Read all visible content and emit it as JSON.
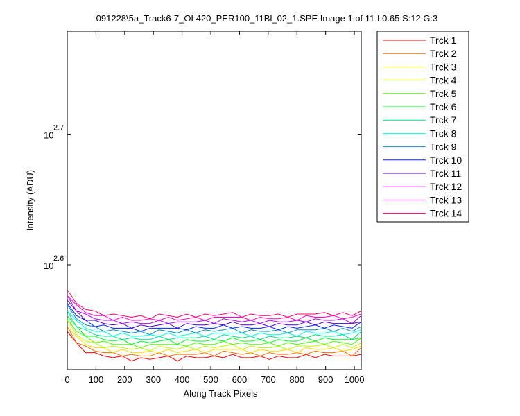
{
  "chart_data": {
    "type": "line",
    "title": "091228\\5a_Track6-7_OL420_PER100_11Bl_02_1.SPE  Image 1 of 11  I:0.65  S:12  G:3",
    "xlabel": "Along Track Pixels",
    "ylabel": "Intensity (ADU)",
    "xlim": [
      0,
      1024
    ],
    "xticks": [
      0,
      100,
      200,
      300,
      400,
      500,
      600,
      700,
      800,
      900,
      1000
    ],
    "ylim": [
      331,
      601
    ],
    "ylog": true,
    "yticks": [
      {
        "value": 398.107,
        "label": "10",
        "exponent": "2.6"
      },
      {
        "value": 501.187,
        "label": "10",
        "exponent": "2.7"
      }
    ],
    "legend": "outside-top-right",
    "x": [
      0,
      32,
      64,
      96,
      128,
      160,
      192,
      224,
      256,
      288,
      320,
      352,
      384,
      416,
      448,
      480,
      512,
      544,
      576,
      608,
      640,
      672,
      704,
      736,
      768,
      800,
      832,
      864,
      896,
      928,
      960,
      992,
      1024
    ],
    "series": [
      {
        "name": "Trck 1",
        "color": "#ff0000",
        "values": [
          354,
          347,
          341,
          341,
          339,
          338,
          339,
          336,
          338,
          337,
          338,
          339,
          336,
          339,
          338,
          338,
          339,
          338,
          340,
          338,
          338,
          339,
          337,
          339,
          338,
          338,
          340,
          338,
          340,
          339,
          339,
          339,
          340
        ]
      },
      {
        "name": "Trck 2",
        "color": "#ff6d00",
        "values": [
          357,
          347,
          345,
          342,
          341,
          341,
          339,
          340,
          339,
          339,
          341,
          339,
          340,
          340,
          340,
          341,
          339,
          342,
          341,
          340,
          341,
          339,
          341,
          340,
          340,
          341,
          340,
          342,
          341,
          341,
          342,
          339,
          344
        ]
      },
      {
        "name": "Trck 3",
        "color": "#ffdb00",
        "values": [
          357,
          351,
          346,
          344,
          344,
          341,
          343,
          341,
          341,
          342,
          341,
          343,
          341,
          342,
          343,
          341,
          343,
          343,
          343,
          343,
          341,
          343,
          342,
          342,
          343,
          341,
          344,
          343,
          343,
          344,
          342,
          343,
          345
        ]
      },
      {
        "name": "Trck 4",
        "color": "#b6ff00",
        "values": [
          361,
          352,
          348,
          347,
          344,
          345,
          344,
          343,
          344,
          342,
          345,
          344,
          343,
          345,
          343,
          345,
          344,
          345,
          346,
          343,
          345,
          344,
          344,
          345,
          343,
          345,
          345,
          345,
          346,
          344,
          346,
          344,
          347
        ]
      },
      {
        "name": "Trck 5",
        "color": "#49ff00",
        "values": [
          362,
          354,
          351,
          347,
          348,
          346,
          346,
          346,
          344,
          346,
          346,
          346,
          346,
          345,
          347,
          346,
          346,
          348,
          346,
          347,
          346,
          346,
          347,
          345,
          347,
          346,
          347,
          348,
          346,
          348,
          347,
          346,
          350
        ]
      },
      {
        "name": "Trck 6",
        "color": "#00ff24",
        "values": [
          364,
          357,
          351,
          351,
          349,
          348,
          349,
          346,
          348,
          347,
          348,
          349,
          346,
          349,
          348,
          348,
          349,
          348,
          350,
          348,
          348,
          349,
          347,
          349,
          348,
          348,
          350,
          348,
          350,
          349,
          349,
          349,
          350
        ]
      },
      {
        "name": "Trck 7",
        "color": "#00e08a",
        "values": [
          367,
          357,
          355,
          352,
          351,
          351,
          349,
          350,
          349,
          349,
          351,
          349,
          350,
          350,
          350,
          351,
          349,
          352,
          351,
          350,
          351,
          349,
          351,
          350,
          350,
          351,
          350,
          352,
          351,
          351,
          352,
          349,
          354
        ]
      },
      {
        "name": "Trck 8",
        "color": "#00ffe0",
        "values": [
          367,
          361,
          356,
          354,
          354,
          351,
          353,
          351,
          351,
          352,
          351,
          353,
          351,
          352,
          353,
          351,
          353,
          353,
          353,
          353,
          351,
          353,
          352,
          352,
          353,
          351,
          354,
          353,
          353,
          354,
          352,
          353,
          355
        ]
      },
      {
        "name": "Trck 9",
        "color": "#0092c8",
        "values": [
          371,
          362,
          358,
          357,
          354,
          355,
          354,
          353,
          354,
          352,
          355,
          354,
          353,
          355,
          353,
          355,
          354,
          355,
          356,
          353,
          355,
          354,
          354,
          355,
          353,
          355,
          355,
          355,
          356,
          354,
          356,
          354,
          357
        ]
      },
      {
        "name": "Trck 10",
        "color": "#0024ff",
        "values": [
          372,
          364,
          361,
          357,
          358,
          356,
          356,
          356,
          354,
          356,
          356,
          356,
          356,
          355,
          357,
          356,
          356,
          358,
          356,
          357,
          356,
          356,
          357,
          355,
          357,
          356,
          357,
          358,
          356,
          358,
          357,
          356,
          360
        ]
      },
      {
        "name": "Trck 11",
        "color": "#4900d0",
        "values": [
          374,
          367,
          361,
          361,
          359,
          358,
          359,
          356,
          358,
          357,
          358,
          359,
          356,
          359,
          358,
          358,
          359,
          358,
          360,
          358,
          358,
          359,
          357,
          359,
          358,
          358,
          360,
          358,
          360,
          359,
          359,
          359,
          360
        ]
      },
      {
        "name": "Trck 12",
        "color": "#b600ff",
        "values": [
          377,
          367,
          365,
          362,
          361,
          361,
          359,
          360,
          359,
          359,
          361,
          359,
          360,
          360,
          360,
          361,
          359,
          362,
          361,
          360,
          361,
          359,
          361,
          360,
          360,
          361,
          360,
          362,
          361,
          361,
          362,
          359,
          364
        ]
      },
      {
        "name": "Trck 13",
        "color": "#ff00db",
        "values": [
          377,
          371,
          366,
          364,
          364,
          361,
          363,
          361,
          361,
          362,
          361,
          363,
          361,
          362,
          363,
          361,
          363,
          363,
          363,
          363,
          361,
          363,
          362,
          362,
          363,
          361,
          364,
          363,
          363,
          364,
          362,
          363,
          365
        ]
      },
      {
        "name": "Trck 14",
        "color": "#ff006d",
        "values": [
          381,
          372,
          368,
          367,
          364,
          365,
          364,
          363,
          364,
          362,
          365,
          364,
          363,
          365,
          363,
          365,
          364,
          365,
          366,
          363,
          365,
          364,
          364,
          365,
          363,
          365,
          365,
          365,
          366,
          364,
          366,
          364,
          367
        ]
      }
    ]
  }
}
